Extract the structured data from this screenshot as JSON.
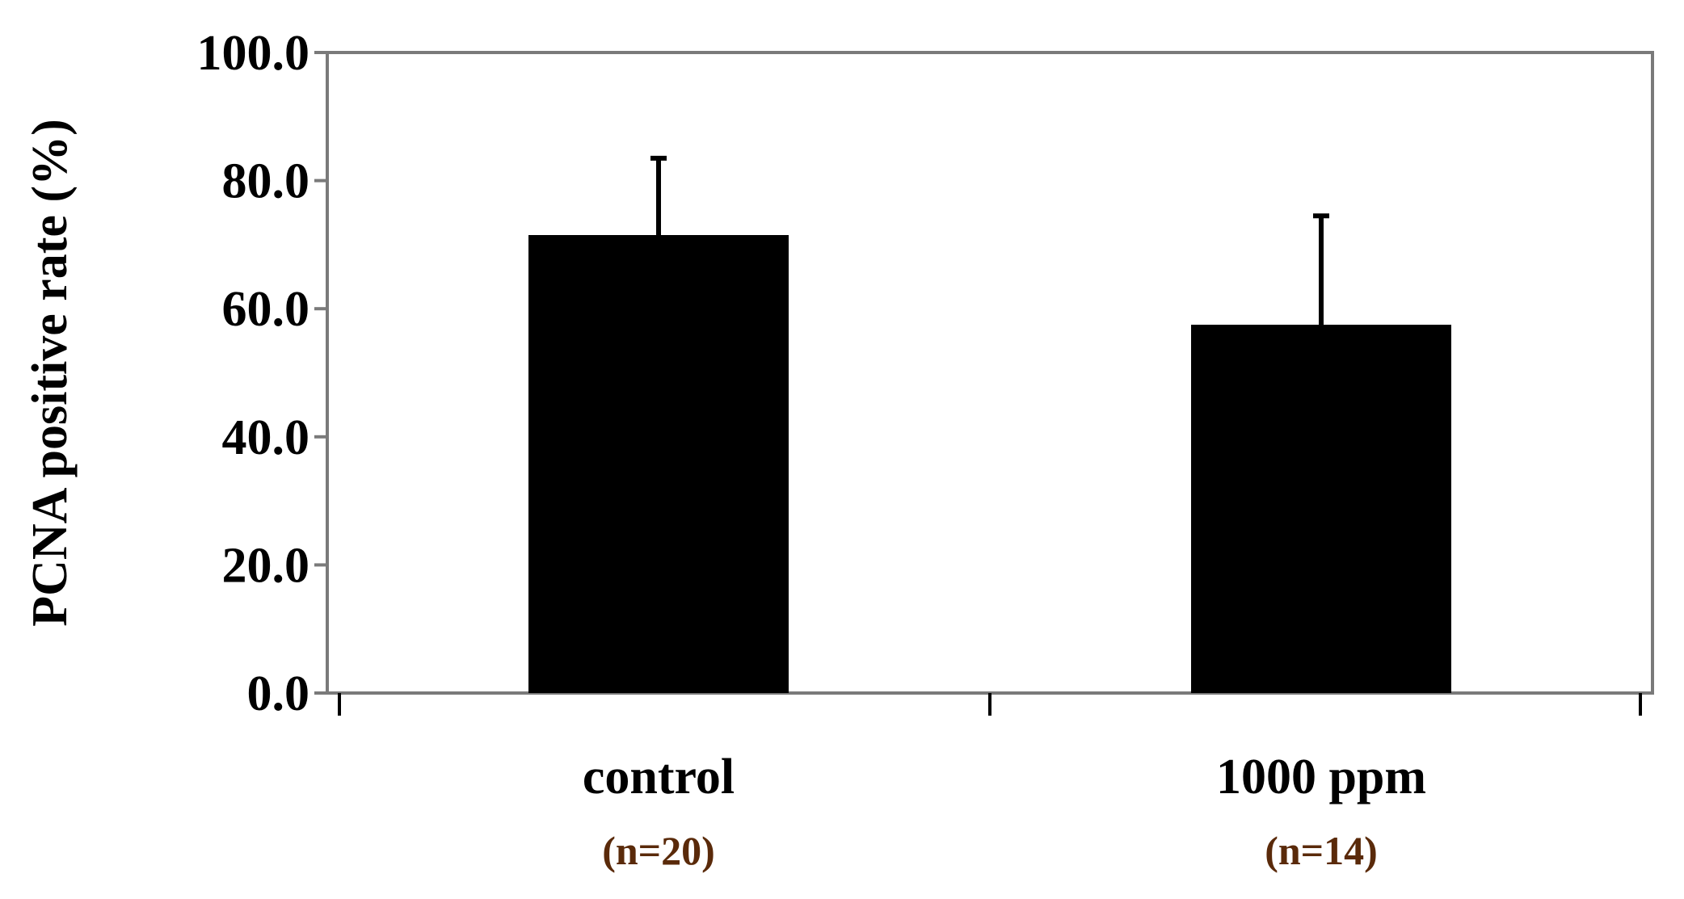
{
  "chart_data": {
    "type": "bar",
    "title": "",
    "xlabel": "",
    "ylabel": "PCNA positive rate (%)",
    "ylim": [
      0,
      100
    ],
    "yticks": [
      0,
      20,
      40,
      60,
      80,
      100
    ],
    "ytick_labels": [
      "0.0",
      "20.0",
      "40.0",
      "60.0",
      "80.0",
      "100.0"
    ],
    "categories": [
      "control",
      "1000 ppm"
    ],
    "sample_sizes": [
      "(n=20)",
      "(n=14)"
    ],
    "values": [
      71.5,
      57.5
    ],
    "error_upper": [
      83.5,
      74.5
    ],
    "grid": false,
    "legend": "none",
    "bar_color": "#000000",
    "n_label_color": "#5a2a0a"
  }
}
